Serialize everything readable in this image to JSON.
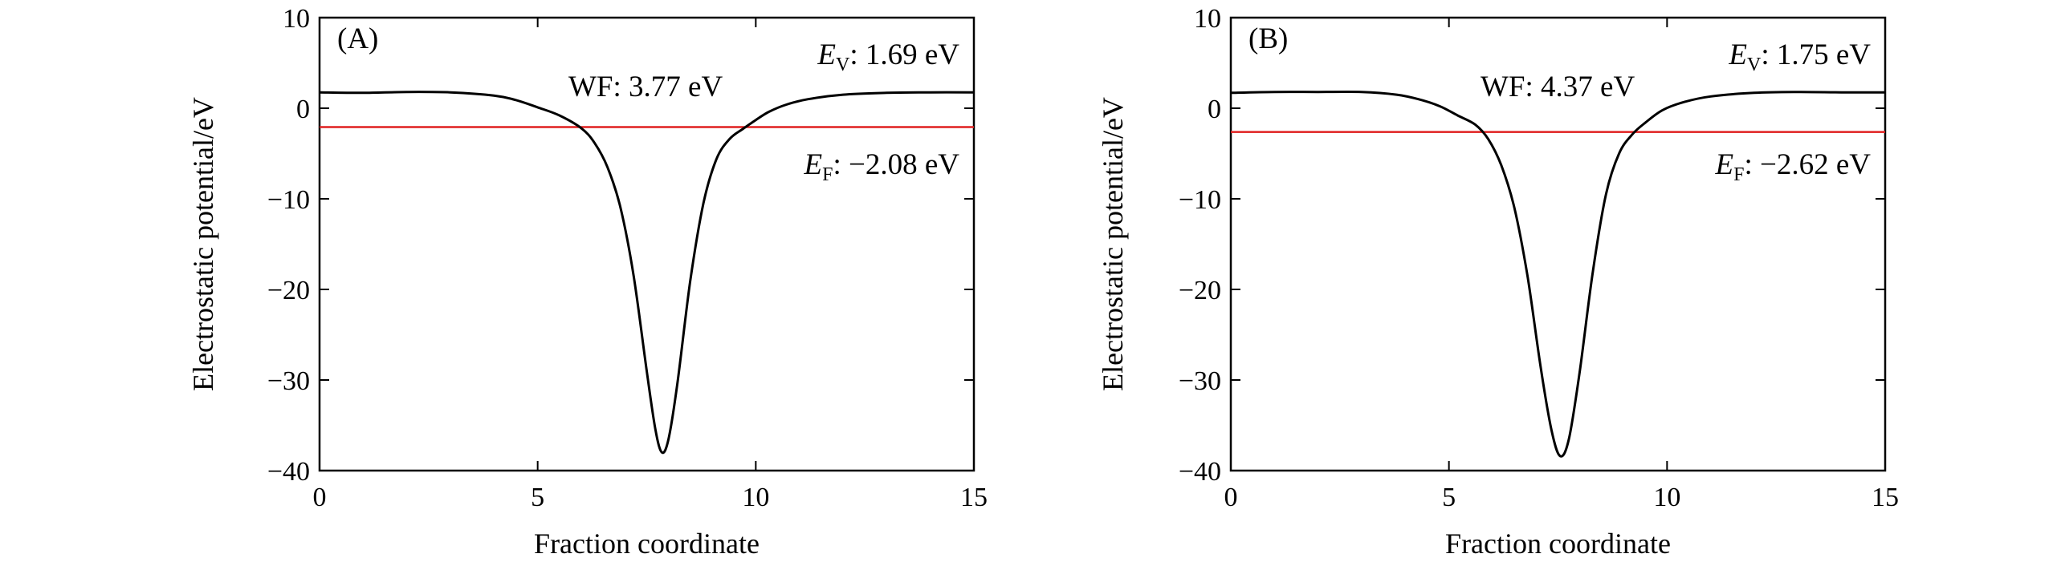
{
  "chart_data": [
    {
      "type": "line",
      "panel_label": "(A)",
      "xlabel": "Fraction coordinate",
      "ylabel": "Electrostatic potential/eV",
      "xlim": [
        0,
        15
      ],
      "ylim": [
        -40,
        10
      ],
      "xticks": [
        "0",
        "5",
        "10",
        "15"
      ],
      "yticks": [
        "10",
        "0",
        "−10",
        "−20",
        "−30",
        "−40"
      ],
      "grid": false,
      "annotations": {
        "ev_symbol": "E",
        "ev_sub": "V",
        "ev_value": ": 1.69 eV",
        "wf": "WF: 3.77 eV",
        "ef_symbol": "E",
        "ef_sub": "F",
        "ef_value": ": −2.08 eV"
      },
      "fermi_level": -2.08,
      "fermi_color": "#e02020",
      "curve_color": "#000000",
      "x": [
        0,
        1,
        2,
        3,
        4,
        4.5,
        5,
        5.5,
        6,
        6.3,
        6.6,
        6.9,
        7.2,
        7.5,
        7.7,
        7.85,
        8.0,
        8.2,
        8.5,
        8.8,
        9.1,
        9.4,
        9.7,
        10.0,
        10.3,
        10.7,
        11.2,
        12,
        13,
        14,
        15
      ],
      "y": [
        1.75,
        1.7,
        1.8,
        1.75,
        1.4,
        0.9,
        0.1,
        -0.8,
        -2.2,
        -3.8,
        -6.5,
        -11.0,
        -18.5,
        -29.0,
        -35.5,
        -38.0,
        -36.5,
        -30.5,
        -19.0,
        -10.5,
        -5.6,
        -3.4,
        -2.3,
        -1.3,
        -0.4,
        0.4,
        1.0,
        1.5,
        1.7,
        1.75,
        1.75
      ]
    },
    {
      "type": "line",
      "panel_label": "(B)",
      "xlabel": "Fraction coordinate",
      "ylabel": "Electrostatic potential/eV",
      "xlim": [
        0,
        15
      ],
      "ylim": [
        -40,
        10
      ],
      "xticks": [
        "0",
        "5",
        "10",
        "15"
      ],
      "yticks": [
        "10",
        "0",
        "−10",
        "−20",
        "−30",
        "−40"
      ],
      "grid": false,
      "annotations": {
        "ev_symbol": "E",
        "ev_sub": "V",
        "ev_value": ": 1.75 eV",
        "wf": "WF: 4.37 eV",
        "ef_symbol": "E",
        "ef_sub": "F",
        "ef_value": ": −2.62 eV"
      },
      "fermi_level": -2.62,
      "fermi_color": "#e02020",
      "curve_color": "#000000",
      "x": [
        0,
        1,
        2,
        3,
        3.8,
        4.3,
        4.8,
        5.2,
        5.6,
        5.9,
        6.2,
        6.5,
        6.8,
        7.1,
        7.35,
        7.55,
        7.75,
        8.0,
        8.3,
        8.6,
        8.9,
        9.2,
        9.5,
        9.9,
        10.4,
        11,
        12,
        13,
        14,
        15
      ],
      "y": [
        1.7,
        1.8,
        1.8,
        1.8,
        1.5,
        1.0,
        0.2,
        -0.8,
        -1.8,
        -3.4,
        -6.3,
        -11.0,
        -18.5,
        -28.5,
        -35.5,
        -38.4,
        -36.5,
        -29.0,
        -18.0,
        -9.5,
        -5.0,
        -2.9,
        -1.6,
        -0.2,
        0.7,
        1.3,
        1.7,
        1.8,
        1.75,
        1.75
      ]
    }
  ]
}
